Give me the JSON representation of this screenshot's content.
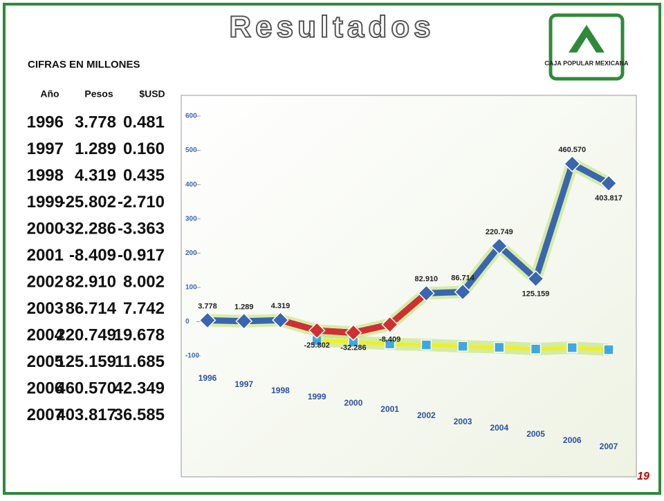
{
  "header": {
    "title": "Resultados",
    "subtitle": "CIFRAS EN MILLONES",
    "logo": "CAJA POPULAR MEXICANA",
    "page": "19"
  },
  "table": {
    "columns": [
      "Año",
      "Pesos",
      "$USD"
    ],
    "rows": [
      [
        "1996",
        "3.778",
        "0.481"
      ],
      [
        "1997",
        "1.289",
        "0.160"
      ],
      [
        "1998",
        "4.319",
        "0.435"
      ],
      [
        "1999",
        "-25.802",
        "-2.710"
      ],
      [
        "2000",
        "-32.286",
        "-3.363"
      ],
      [
        "2001",
        "-8.409",
        "-0.917"
      ],
      [
        "2002",
        "82.910",
        "8.002"
      ],
      [
        "2003",
        "86.714",
        "7.742"
      ],
      [
        "2004",
        "220.749",
        "19.678"
      ],
      [
        "2005",
        "125.159",
        "11.685"
      ],
      [
        "2006",
        "460.570",
        "42.349"
      ],
      [
        "2007",
        "403.817",
        "36.585"
      ]
    ]
  },
  "chart_data": {
    "type": "line",
    "categories": [
      "1996",
      "1997",
      "1998",
      "1999",
      "2000",
      "2001",
      "2002",
      "2003",
      "2004",
      "2005",
      "2006",
      "2007"
    ],
    "series": [
      {
        "color": "#3a66b0",
        "negative_color": "#d03030",
        "values": [
          3.778,
          1.289,
          4.319,
          -25.802,
          -32.286,
          -8.409,
          82.91,
          86.714,
          220.749,
          125.159,
          460.57,
          403.817
        ],
        "value_labels": [
          "3.778",
          "1.289",
          "4.319",
          "-25.802",
          "-32.286",
          "-8.409",
          "82.910",
          "86.714",
          "220.749",
          "125.159",
          "460.570",
          "403.817"
        ]
      },
      {
        "color": "#f0f020",
        "values": [
          null,
          null,
          null,
          -55,
          -60,
          -65,
          -68,
          -72,
          -75,
          -80,
          -76,
          -82
        ]
      }
    ],
    "ylim": [
      -100,
      600
    ],
    "yticks": [
      -100,
      0,
      100,
      200,
      300,
      400,
      500,
      600
    ],
    "grid": false
  }
}
